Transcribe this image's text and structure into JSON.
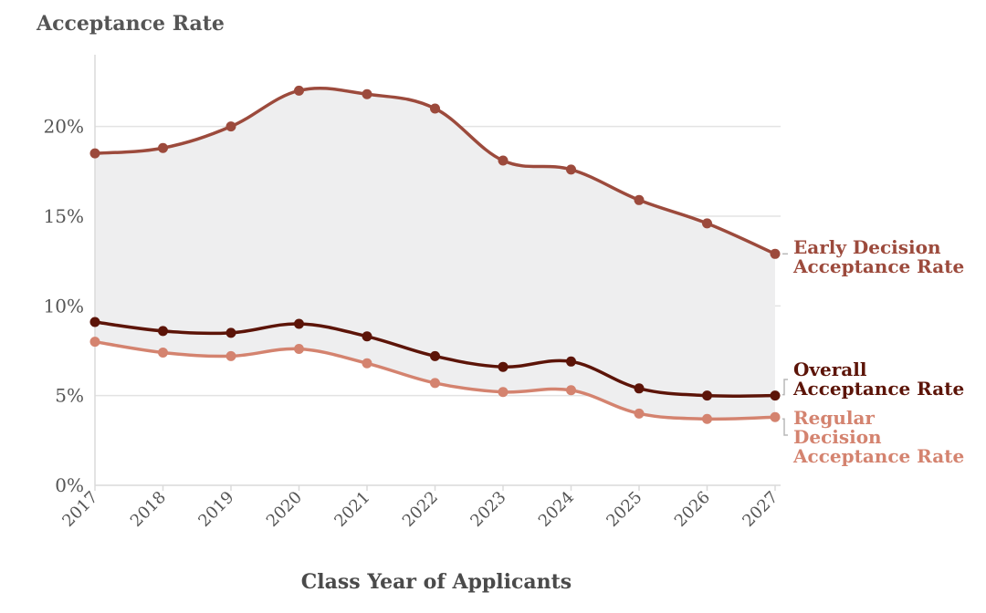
{
  "chart_data": {
    "type": "line",
    "title": "Acceptance Rate",
    "xlabel": "Class Year of Applicants",
    "ylabel": "",
    "ylim": [
      0,
      24
    ],
    "y_ticks": [
      0,
      5,
      10,
      15,
      20
    ],
    "y_tick_labels": [
      "0%",
      "5%",
      "10%",
      "15%",
      "20%"
    ],
    "categories": [
      "2017",
      "2018",
      "2019",
      "2020",
      "2021",
      "2022",
      "2023",
      "2024",
      "2025",
      "2026",
      "2027"
    ],
    "series": [
      {
        "name": "Early Decision Acceptance Rate",
        "label_lines": [
          "Early Decision",
          "Acceptance Rate"
        ],
        "color": "#9c4a3c",
        "values": [
          18.5,
          18.8,
          20.0,
          22.0,
          21.8,
          21.0,
          18.1,
          17.6,
          15.9,
          14.6,
          12.9
        ]
      },
      {
        "name": "Overall Acceptance Rate",
        "label_lines": [
          "Overall",
          "Acceptance Rate"
        ],
        "color": "#5c1408",
        "values": [
          9.1,
          8.6,
          8.5,
          9.0,
          8.3,
          7.2,
          6.6,
          6.9,
          5.4,
          5.0,
          5.0
        ]
      },
      {
        "name": "Regular Decision Acceptance Rate",
        "label_lines": [
          "Regular",
          "Decision",
          "Acceptance Rate"
        ],
        "color": "#d4836f",
        "values": [
          8.0,
          7.4,
          7.2,
          7.6,
          6.8,
          5.7,
          5.2,
          5.3,
          4.0,
          3.7,
          3.8
        ]
      }
    ],
    "band_fill": "#eeeeef",
    "grid": true
  }
}
